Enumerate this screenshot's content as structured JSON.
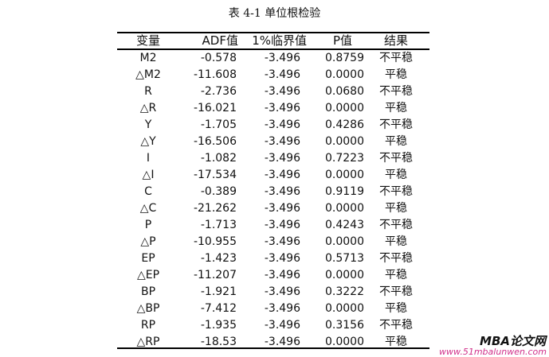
{
  "title": "表 4-1 单位根检验",
  "headers": [
    "变量",
    "ADF值",
    "1%临界值",
    "P值",
    "结果"
  ],
  "rows": [
    [
      "M2",
      "-0.578",
      "-3.496",
      "0.8759",
      "不平稳"
    ],
    [
      "△M2",
      "-11.608",
      "-3.496",
      "0.0000",
      "平稳"
    ],
    [
      "R",
      "-2.736",
      "-3.496",
      "0.0680",
      "不平稳"
    ],
    [
      "△R",
      "-16.021",
      "-3.496",
      "0.0000",
      "平稳"
    ],
    [
      "Y",
      "-1.705",
      "-3.496",
      "0.4286",
      "不平稳"
    ],
    [
      "△Y",
      "-16.506",
      "-3.496",
      "0.0000",
      "平稳"
    ],
    [
      "I",
      "-1.082",
      "-3.496",
      "0.7223",
      "不平稳"
    ],
    [
      "△I",
      "-17.534",
      "-3.496",
      "0.0000",
      "平稳"
    ],
    [
      "C",
      "-0.389",
      "-3.496",
      "0.9119",
      "不平稳"
    ],
    [
      "△C",
      "-21.262",
      "-3.496",
      "0.0000",
      "平稳"
    ],
    [
      "P",
      "-1.713",
      "-3.496",
      "0.4243",
      "不平稳"
    ],
    [
      "△P",
      "-10.955",
      "-3.496",
      "0.0000",
      "平稳"
    ],
    [
      "EP",
      "-1.423",
      "-3.496",
      "0.5713",
      "不平稳"
    ],
    [
      "△EP",
      "-11.207",
      "-3.496",
      "0.0000",
      "平稳"
    ],
    [
      "BP",
      "-1.921",
      "-3.496",
      "0.3222",
      "不平稳"
    ],
    [
      "△BP",
      "-7.412",
      "-3.496",
      "0.0000",
      "平稳"
    ],
    [
      "RP",
      "-1.935",
      "-3.496",
      "0.3156",
      "不平稳"
    ],
    [
      "△RP",
      "-18.53",
      "-3.496",
      "0.0000",
      "平稳"
    ]
  ],
  "watermark": {
    "name": "MBA论文网",
    "url": "www.51mbalunwen.com"
  }
}
